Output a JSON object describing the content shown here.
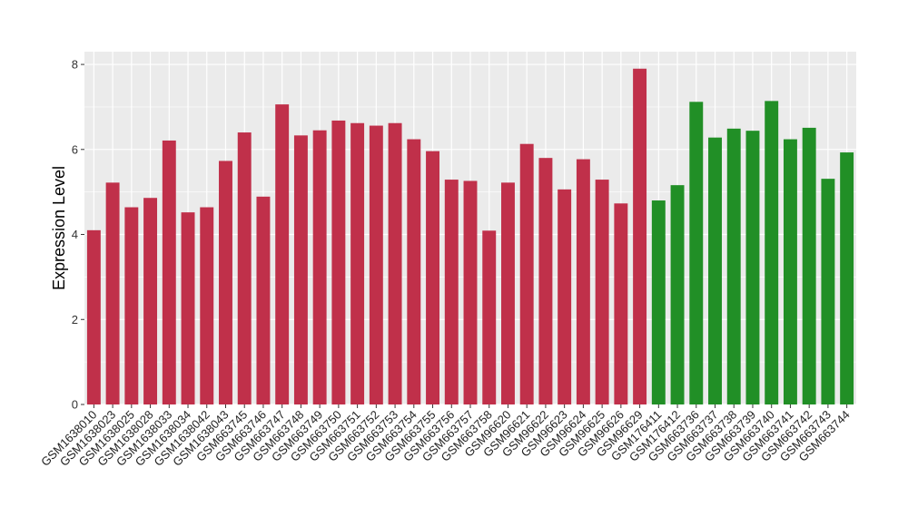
{
  "chart_data": {
    "type": "bar",
    "title": "",
    "xlabel": "",
    "ylabel": "Expression Level",
    "ylim": [
      0,
      8.3
    ],
    "yticks": [
      0,
      2,
      4,
      6,
      8
    ],
    "grid": true,
    "legend": "none",
    "colors": {
      "group1": "#C0304A",
      "group2": "#218F26",
      "panel": "#EBEBEB",
      "grid": "#FFFFFF"
    },
    "categories": [
      "GSM1638010",
      "GSM1638023",
      "GSM1638025",
      "GSM1638028",
      "GSM1638033",
      "GSM1638034",
      "GSM1638042",
      "GSM1638043",
      "GSM663745",
      "GSM663746",
      "GSM663747",
      "GSM663748",
      "GSM663749",
      "GSM663750",
      "GSM663751",
      "GSM663752",
      "GSM663753",
      "GSM663754",
      "GSM663755",
      "GSM663756",
      "GSM663757",
      "GSM663758",
      "GSM96620",
      "GSM96621",
      "GSM96622",
      "GSM96623",
      "GSM96624",
      "GSM96625",
      "GSM96626",
      "GSM96629",
      "GSM176411",
      "GSM176412",
      "GSM663736",
      "GSM663737",
      "GSM663738",
      "GSM663739",
      "GSM663740",
      "GSM663741",
      "GSM663742",
      "GSM663743",
      "GSM663744"
    ],
    "values": [
      4.1,
      5.22,
      4.64,
      4.86,
      6.21,
      4.52,
      4.64,
      5.73,
      6.4,
      4.89,
      7.06,
      6.33,
      6.45,
      6.68,
      6.62,
      6.56,
      6.62,
      6.24,
      5.96,
      5.29,
      5.26,
      4.09,
      5.22,
      6.13,
      5.8,
      5.06,
      5.77,
      5.29,
      4.73,
      7.9,
      4.8,
      5.16,
      7.12,
      6.28,
      6.49,
      6.44,
      7.14,
      6.24,
      6.51,
      5.31,
      5.93
    ],
    "groups": [
      "group1",
      "group1",
      "group1",
      "group1",
      "group1",
      "group1",
      "group1",
      "group1",
      "group1",
      "group1",
      "group1",
      "group1",
      "group1",
      "group1",
      "group1",
      "group1",
      "group1",
      "group1",
      "group1",
      "group1",
      "group1",
      "group1",
      "group1",
      "group1",
      "group1",
      "group1",
      "group1",
      "group1",
      "group1",
      "group1",
      "group2",
      "group2",
      "group2",
      "group2",
      "group2",
      "group2",
      "group2",
      "group2",
      "group2",
      "group2",
      "group2"
    ]
  }
}
